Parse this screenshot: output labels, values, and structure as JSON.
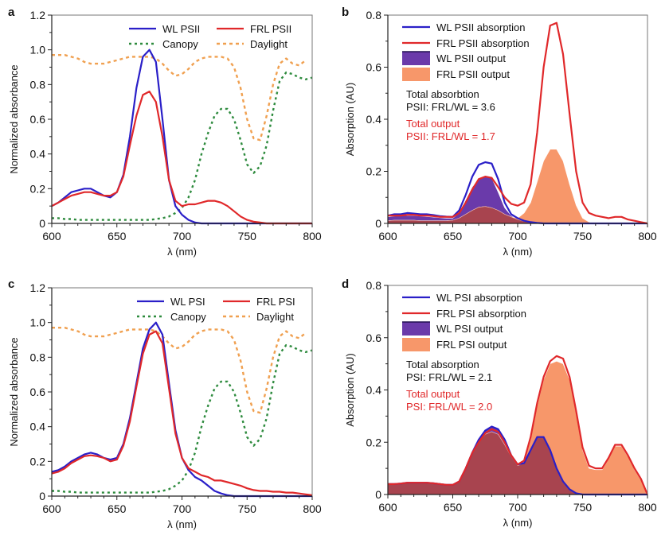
{
  "colors": {
    "wl_line": "#2a1fc8",
    "frl_line": "#e0282a",
    "wl_fill": "#6a3aaa",
    "frl_fill": "#f7976a",
    "overlap_fill": "#a8444f",
    "canopy": "#2e8b3e",
    "daylight": "#f0a050",
    "red_text": "#e0282a"
  },
  "chart_data": [
    {
      "panel": "a",
      "type": "line",
      "xlabel": "λ (nm)",
      "ylabel": "Normalized absorbance",
      "xlim": [
        600,
        800
      ],
      "ylim": [
        0,
        1.2
      ],
      "xticks": [
        "600",
        "650",
        "700",
        "750",
        "800"
      ],
      "yticks": [
        "0",
        "0.2",
        "0.4",
        "0.6",
        "0.8",
        "1.0",
        "1.2"
      ],
      "legend": "top-right",
      "x": [
        600,
        605,
        610,
        615,
        620,
        625,
        630,
        635,
        640,
        645,
        650,
        655,
        660,
        665,
        670,
        675,
        680,
        685,
        690,
        695,
        700,
        705,
        710,
        715,
        720,
        725,
        730,
        735,
        740,
        745,
        750,
        755,
        760,
        765,
        770,
        775,
        780,
        785,
        790,
        795,
        800
      ],
      "series": [
        {
          "name": "WL PSII",
          "style": "wl_line",
          "values": [
            0.1,
            0.12,
            0.15,
            0.18,
            0.19,
            0.2,
            0.2,
            0.18,
            0.16,
            0.15,
            0.18,
            0.28,
            0.5,
            0.78,
            0.96,
            1.0,
            0.93,
            0.6,
            0.25,
            0.1,
            0.05,
            0.02,
            0.005,
            0,
            0,
            0,
            0,
            0,
            0,
            0,
            0,
            0,
            0,
            0,
            0,
            0,
            0,
            0,
            0,
            0,
            0
          ]
        },
        {
          "name": "FRL PSII",
          "style": "frl_line",
          "values": [
            0.1,
            0.12,
            0.14,
            0.16,
            0.17,
            0.18,
            0.18,
            0.17,
            0.16,
            0.16,
            0.18,
            0.27,
            0.45,
            0.62,
            0.74,
            0.76,
            0.7,
            0.5,
            0.25,
            0.13,
            0.1,
            0.11,
            0.11,
            0.12,
            0.13,
            0.13,
            0.12,
            0.1,
            0.07,
            0.04,
            0.02,
            0.01,
            0.005,
            0,
            0,
            0,
            0,
            0,
            0,
            0,
            0
          ]
        },
        {
          "name": "Canopy",
          "style": "canopy",
          "values": [
            0.03,
            0.03,
            0.025,
            0.025,
            0.02,
            0.02,
            0.02,
            0.02,
            0.02,
            0.02,
            0.02,
            0.02,
            0.02,
            0.02,
            0.02,
            0.02,
            0.025,
            0.03,
            0.04,
            0.06,
            0.09,
            0.15,
            0.25,
            0.4,
            0.52,
            0.62,
            0.66,
            0.66,
            0.6,
            0.48,
            0.34,
            0.29,
            0.33,
            0.45,
            0.65,
            0.82,
            0.87,
            0.86,
            0.84,
            0.83,
            0.84
          ]
        },
        {
          "name": "Daylight",
          "style": "daylight",
          "values": [
            0.97,
            0.97,
            0.97,
            0.96,
            0.95,
            0.93,
            0.92,
            0.92,
            0.92,
            0.93,
            0.94,
            0.95,
            0.96,
            0.96,
            0.96,
            0.96,
            0.95,
            0.92,
            0.88,
            0.85,
            0.86,
            0.89,
            0.93,
            0.95,
            0.96,
            0.96,
            0.96,
            0.95,
            0.9,
            0.78,
            0.6,
            0.49,
            0.48,
            0.62,
            0.8,
            0.92,
            0.95,
            0.92,
            0.91,
            0.94,
            null
          ]
        }
      ]
    },
    {
      "panel": "b",
      "type": "area",
      "xlabel": "λ (nm)",
      "ylabel": "Absorption (AU)",
      "xlim": [
        600,
        800
      ],
      "ylim": [
        0,
        0.8
      ],
      "xticks": [
        "600",
        "650",
        "700",
        "750",
        "800"
      ],
      "yticks": [
        "0",
        "0.2",
        "0.4",
        "0.6",
        "0.8"
      ],
      "legend": "top-left",
      "annotations": [
        {
          "text": "Total absorbtion",
          "color": "black"
        },
        {
          "text": "PSII: FRL/WL = 3.6",
          "color": "black"
        },
        {
          "text": "Total output",
          "color": "red"
        },
        {
          "text": "PSII: FRL/WL = 1.7",
          "color": "red"
        }
      ],
      "x": [
        600,
        605,
        610,
        615,
        620,
        625,
        630,
        635,
        640,
        645,
        650,
        655,
        660,
        665,
        670,
        675,
        680,
        685,
        690,
        695,
        700,
        705,
        710,
        715,
        720,
        725,
        730,
        735,
        740,
        745,
        750,
        755,
        760,
        765,
        770,
        775,
        780,
        785,
        790,
        795,
        800
      ],
      "series": [
        {
          "name": "WL PSII output",
          "style": "wl_fill",
          "values": [
            0.025,
            0.028,
            0.03,
            0.03,
            0.03,
            0.028,
            0.026,
            0.024,
            0.022,
            0.02,
            0.02,
            0.04,
            0.09,
            0.14,
            0.17,
            0.18,
            0.175,
            0.12,
            0.06,
            0.03,
            0.015,
            0.008,
            0.005,
            0.003,
            0,
            0,
            0,
            0,
            0,
            0,
            0,
            0,
            0,
            0,
            0,
            0,
            0,
            0,
            0,
            0,
            0
          ]
        },
        {
          "name": "FRL PSII output",
          "style": "frl_fill",
          "values": [
            0.01,
            0.012,
            0.012,
            0.012,
            0.012,
            0.01,
            0.01,
            0.01,
            0.01,
            0.01,
            0.012,
            0.02,
            0.035,
            0.05,
            0.062,
            0.065,
            0.06,
            0.05,
            0.035,
            0.025,
            0.02,
            0.04,
            0.08,
            0.16,
            0.24,
            0.285,
            0.285,
            0.24,
            0.15,
            0.07,
            0.02,
            0.005,
            0,
            0,
            0,
            0,
            0,
            0,
            0,
            0,
            0
          ]
        },
        {
          "name": "WL PSII absorption",
          "style": "wl_line",
          "values": [
            0.03,
            0.035,
            0.035,
            0.04,
            0.038,
            0.035,
            0.035,
            0.032,
            0.028,
            0.026,
            0.025,
            0.05,
            0.11,
            0.18,
            0.225,
            0.235,
            0.23,
            0.17,
            0.08,
            0.035,
            0.02,
            0.01,
            0.005,
            0.002,
            0,
            0,
            0,
            0,
            0,
            0,
            0,
            0,
            0,
            0,
            0,
            0,
            0,
            0,
            0,
            0,
            0
          ]
        },
        {
          "name": "FRL PSII absorption",
          "style": "frl_line",
          "values": [
            0.03,
            0.03,
            0.03,
            0.033,
            0.033,
            0.03,
            0.03,
            0.028,
            0.025,
            0.025,
            0.025,
            0.04,
            0.08,
            0.13,
            0.17,
            0.18,
            0.175,
            0.14,
            0.1,
            0.075,
            0.068,
            0.08,
            0.15,
            0.35,
            0.6,
            0.76,
            0.77,
            0.65,
            0.42,
            0.2,
            0.08,
            0.04,
            0.03,
            0.025,
            0.02,
            0.025,
            0.025,
            0.015,
            0.01,
            0.005,
            0
          ]
        }
      ]
    },
    {
      "panel": "c",
      "type": "line",
      "xlabel": "λ (nm)",
      "ylabel": "Normalized absorbance",
      "xlim": [
        600,
        800
      ],
      "ylim": [
        0,
        1.2
      ],
      "xticks": [
        "600",
        "650",
        "700",
        "750",
        "800"
      ],
      "yticks": [
        "0",
        "0.2",
        "0.4",
        "0.6",
        "0.8",
        "1.0",
        "1.2"
      ],
      "legend": "top-right",
      "x": [
        600,
        605,
        610,
        615,
        620,
        625,
        630,
        635,
        640,
        645,
        650,
        655,
        660,
        665,
        670,
        675,
        680,
        685,
        690,
        695,
        700,
        705,
        710,
        715,
        720,
        725,
        730,
        735,
        740,
        745,
        750,
        755,
        760,
        765,
        770,
        775,
        780,
        785,
        790,
        795,
        800
      ],
      "series": [
        {
          "name": "WL PSI",
          "style": "wl_line",
          "values": [
            0.14,
            0.15,
            0.17,
            0.2,
            0.22,
            0.24,
            0.25,
            0.24,
            0.22,
            0.21,
            0.22,
            0.3,
            0.45,
            0.65,
            0.85,
            0.96,
            1.0,
            0.93,
            0.65,
            0.38,
            0.22,
            0.15,
            0.11,
            0.09,
            0.06,
            0.03,
            0.015,
            0.005,
            0,
            0,
            0,
            0,
            0,
            0,
            0,
            0,
            0,
            0,
            0,
            0,
            0
          ]
        },
        {
          "name": "FRL PSI",
          "style": "frl_line",
          "values": [
            0.13,
            0.14,
            0.16,
            0.19,
            0.21,
            0.23,
            0.235,
            0.23,
            0.22,
            0.2,
            0.21,
            0.29,
            0.43,
            0.63,
            0.82,
            0.93,
            0.95,
            0.88,
            0.62,
            0.36,
            0.22,
            0.16,
            0.14,
            0.12,
            0.11,
            0.09,
            0.09,
            0.08,
            0.07,
            0.06,
            0.045,
            0.035,
            0.03,
            0.03,
            0.025,
            0.025,
            0.02,
            0.02,
            0.015,
            0.01,
            0.005
          ]
        },
        {
          "name": "Canopy",
          "style": "canopy",
          "values": [
            0.03,
            0.03,
            0.025,
            0.025,
            0.02,
            0.02,
            0.02,
            0.02,
            0.02,
            0.02,
            0.02,
            0.02,
            0.02,
            0.02,
            0.02,
            0.02,
            0.025,
            0.03,
            0.04,
            0.06,
            0.09,
            0.15,
            0.25,
            0.4,
            0.52,
            0.62,
            0.66,
            0.66,
            0.6,
            0.48,
            0.34,
            0.29,
            0.33,
            0.45,
            0.65,
            0.82,
            0.87,
            0.86,
            0.84,
            0.83,
            0.84
          ]
        },
        {
          "name": "Daylight",
          "style": "daylight",
          "values": [
            0.97,
            0.97,
            0.97,
            0.96,
            0.95,
            0.93,
            0.92,
            0.92,
            0.92,
            0.93,
            0.94,
            0.95,
            0.96,
            0.96,
            0.96,
            0.96,
            0.95,
            0.92,
            0.88,
            0.85,
            0.86,
            0.89,
            0.93,
            0.95,
            0.96,
            0.96,
            0.96,
            0.95,
            0.9,
            0.78,
            0.6,
            0.49,
            0.48,
            0.62,
            0.8,
            0.92,
            0.95,
            0.92,
            0.91,
            0.94,
            null
          ]
        }
      ]
    },
    {
      "panel": "d",
      "type": "area",
      "xlabel": "λ (nm)",
      "ylabel": "Absorption (AU)",
      "xlim": [
        600,
        800
      ],
      "ylim": [
        0,
        0.8
      ],
      "xticks": [
        "600",
        "650",
        "700",
        "750",
        "800"
      ],
      "yticks": [
        "0",
        "0.2",
        "0.4",
        "0.6",
        "0.8"
      ],
      "legend": "top-left",
      "annotations": [
        {
          "text": "Total absorption",
          "color": "black"
        },
        {
          "text": "PSI: FRL/WL = 2.1",
          "color": "black"
        },
        {
          "text": "Total output",
          "color": "red"
        },
        {
          "text": "PSI: FRL/WL = 2.0",
          "color": "red"
        }
      ],
      "x": [
        600,
        605,
        610,
        615,
        620,
        625,
        630,
        635,
        640,
        645,
        650,
        655,
        660,
        665,
        670,
        675,
        680,
        685,
        690,
        695,
        700,
        705,
        710,
        715,
        720,
        725,
        730,
        735,
        740,
        745,
        750,
        755,
        760,
        765,
        770,
        775,
        780,
        785,
        790,
        795,
        800
      ],
      "series": [
        {
          "name": "WL PSI output",
          "style": "wl_fill",
          "values": [
            0.04,
            0.04,
            0.042,
            0.045,
            0.045,
            0.045,
            0.045,
            0.043,
            0.04,
            0.037,
            0.037,
            0.05,
            0.1,
            0.16,
            0.21,
            0.245,
            0.26,
            0.25,
            0.21,
            0.15,
            0.115,
            0.12,
            0.17,
            0.22,
            0.22,
            0.17,
            0.1,
            0.05,
            0.02,
            0.005,
            0,
            0,
            0,
            0,
            0,
            0,
            0,
            0,
            0,
            0,
            0
          ]
        },
        {
          "name": "FRL PSI output",
          "style": "frl_fill",
          "values": [
            0.04,
            0.04,
            0.042,
            0.045,
            0.045,
            0.045,
            0.045,
            0.043,
            0.04,
            0.037,
            0.037,
            0.05,
            0.1,
            0.16,
            0.2,
            0.23,
            0.24,
            0.23,
            0.19,
            0.145,
            0.11,
            0.125,
            0.21,
            0.34,
            0.44,
            0.5,
            0.51,
            0.5,
            0.44,
            0.31,
            0.17,
            0.1,
            0.095,
            0.095,
            0.135,
            0.185,
            0.185,
            0.145,
            0.095,
            0.055,
            0
          ]
        },
        {
          "name": "WL PSI absorption",
          "style": "wl_line",
          "values": [
            0.04,
            0.04,
            0.042,
            0.045,
            0.045,
            0.045,
            0.045,
            0.043,
            0.04,
            0.037,
            0.037,
            0.05,
            0.1,
            0.16,
            0.21,
            0.245,
            0.26,
            0.25,
            0.21,
            0.15,
            0.115,
            0.12,
            0.17,
            0.22,
            0.22,
            0.17,
            0.1,
            0.05,
            0.02,
            0.005,
            0,
            0,
            0,
            0,
            0,
            0,
            0,
            0,
            0,
            0,
            0
          ]
        },
        {
          "name": "FRL PSI absorption",
          "style": "frl_line",
          "values": [
            0.04,
            0.04,
            0.042,
            0.045,
            0.045,
            0.045,
            0.045,
            0.043,
            0.04,
            0.037,
            0.037,
            0.05,
            0.1,
            0.16,
            0.2,
            0.235,
            0.25,
            0.24,
            0.2,
            0.15,
            0.115,
            0.13,
            0.22,
            0.35,
            0.45,
            0.51,
            0.53,
            0.52,
            0.45,
            0.32,
            0.18,
            0.11,
            0.1,
            0.1,
            0.14,
            0.19,
            0.19,
            0.15,
            0.1,
            0.06,
            0
          ]
        }
      ]
    }
  ]
}
